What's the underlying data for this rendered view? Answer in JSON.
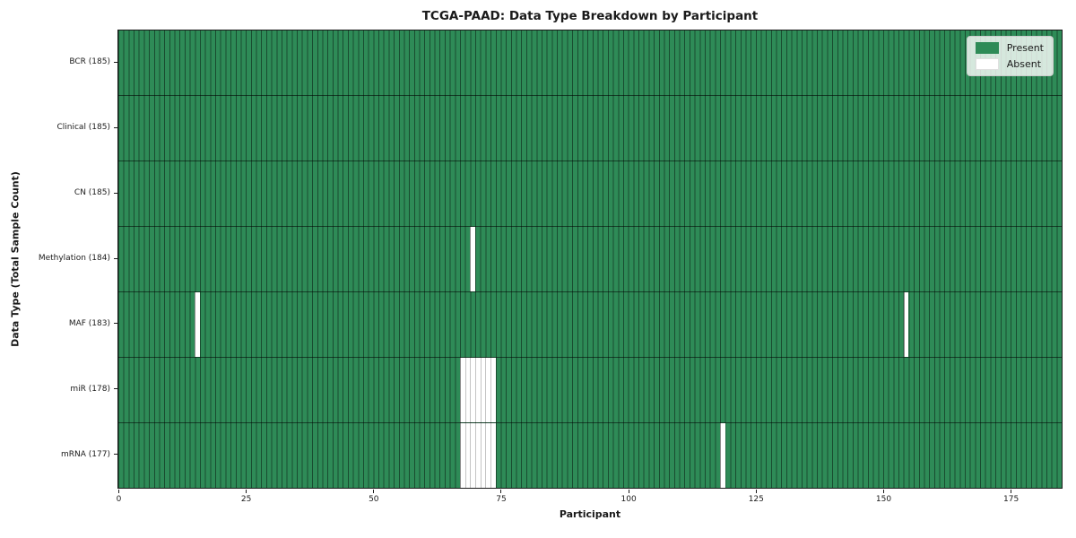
{
  "chart_data": {
    "type": "heatmap",
    "title": "TCGA-PAAD: Data Type Breakdown by Participant",
    "xlabel": "Participant",
    "ylabel": "Data Type (Total Sample Count)",
    "n_participants": 185,
    "x_ticks": [
      0,
      25,
      50,
      75,
      100,
      125,
      150,
      175
    ],
    "rows": [
      {
        "key": "bcr",
        "label": "BCR (185)",
        "total": 185,
        "absent_indices": []
      },
      {
        "key": "clinical",
        "label": "Clinical (185)",
        "total": 185,
        "absent_indices": []
      },
      {
        "key": "cn",
        "label": "CN (185)",
        "total": 185,
        "absent_indices": []
      },
      {
        "key": "methylation",
        "label": "Methylation (184)",
        "total": 184,
        "absent_indices": [
          69
        ]
      },
      {
        "key": "maf",
        "label": "MAF (183)",
        "total": 183,
        "absent_indices": [
          15,
          154
        ]
      },
      {
        "key": "mir",
        "label": "miR (178)",
        "total": 178,
        "absent_indices": [
          67,
          68,
          69,
          70,
          71,
          72,
          73
        ]
      },
      {
        "key": "mrna",
        "label": "mRNA (177)",
        "total": 177,
        "absent_indices": [
          67,
          68,
          69,
          70,
          71,
          72,
          73,
          118
        ]
      }
    ],
    "legend": [
      {
        "label": "Present",
        "color": "#2e8b57"
      },
      {
        "label": "Absent",
        "color": "#ffffff"
      }
    ],
    "legend_position": "upper right",
    "grid": false
  },
  "colors": {
    "present": "#2e8b57",
    "absent": "#ffffff",
    "cell_edge": "rgba(0,0,0,0.45)",
    "absent_run_divider": "#c4c4c4",
    "row_divider": "rgba(0,0,0,0.55)",
    "spine": "#1a1a1a",
    "legend_bg": "rgba(255,255,255,0.8)",
    "legend_border": "#cccccc"
  }
}
